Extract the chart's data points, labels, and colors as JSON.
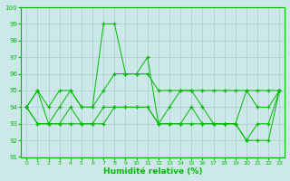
{
  "xlabel": "Humidité relative (%)",
  "ylim": [
    91,
    100
  ],
  "xlim": [
    -0.5,
    23.5
  ],
  "yticks": [
    91,
    92,
    93,
    94,
    95,
    96,
    97,
    98,
    99,
    100
  ],
  "xticks": [
    0,
    1,
    2,
    3,
    4,
    5,
    6,
    7,
    8,
    9,
    10,
    11,
    12,
    13,
    14,
    15,
    16,
    17,
    18,
    19,
    20,
    21,
    22,
    23
  ],
  "background_color": "#cce8e8",
  "grid_color": "#aacece",
  "line_color": "#00bb00",
  "series": [
    {
      "x": [
        0,
        1,
        2,
        3,
        4,
        5,
        6,
        7,
        8,
        9,
        10,
        11,
        12,
        13,
        14,
        15,
        16,
        17,
        18,
        19,
        20,
        21,
        22,
        23
      ],
      "y": [
        94,
        95,
        94,
        95,
        95,
        94,
        94,
        95,
        96,
        96,
        96,
        96,
        95,
        95,
        95,
        95,
        95,
        95,
        95,
        95,
        95,
        95,
        95,
        95
      ]
    },
    {
      "x": [
        0,
        1,
        2,
        3,
        4,
        5,
        6,
        7,
        8,
        9,
        10,
        11,
        12,
        13,
        14,
        15,
        16,
        17,
        18,
        19,
        20,
        21,
        22,
        23
      ],
      "y": [
        94,
        95,
        93,
        94,
        95,
        94,
        94,
        99,
        99,
        96,
        96,
        97,
        93,
        94,
        95,
        95,
        94,
        93,
        93,
        93,
        95,
        94,
        94,
        95
      ]
    },
    {
      "x": [
        0,
        1,
        2,
        3,
        4,
        5,
        6,
        7,
        8,
        9,
        10,
        11,
        12,
        13,
        14,
        15,
        16,
        17,
        18,
        19,
        20,
        21,
        22,
        23
      ],
      "y": [
        94,
        93,
        93,
        93,
        94,
        93,
        93,
        94,
        94,
        94,
        94,
        94,
        93,
        93,
        93,
        94,
        93,
        93,
        93,
        93,
        92,
        93,
        93,
        95
      ]
    },
    {
      "x": [
        0,
        1,
        2,
        3,
        4,
        5,
        6,
        7,
        8,
        9,
        10,
        11,
        12,
        13,
        14,
        15,
        16,
        17,
        18,
        19,
        20,
        21,
        22,
        23
      ],
      "y": [
        94,
        93,
        93,
        93,
        93,
        93,
        93,
        93,
        94,
        94,
        94,
        94,
        93,
        93,
        93,
        93,
        93,
        93,
        93,
        93,
        92,
        92,
        92,
        95
      ]
    }
  ]
}
